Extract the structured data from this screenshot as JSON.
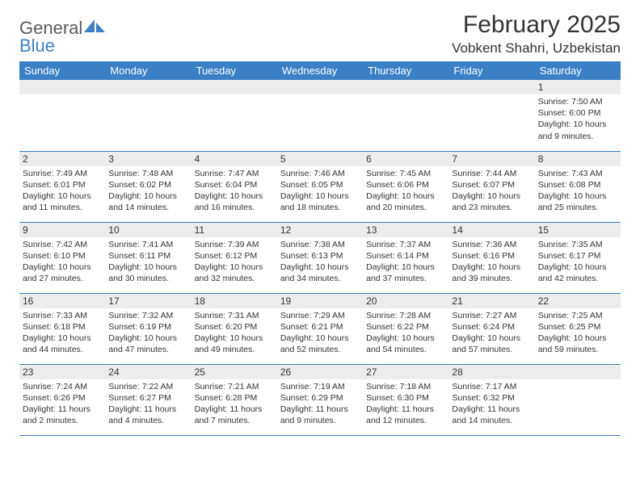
{
  "brand": {
    "word1": "General",
    "word2": "Blue"
  },
  "header": {
    "title": "February 2025",
    "location": "Vobkent Shahri, Uzbekistan"
  },
  "colors": {
    "accent": "#3b7fc4",
    "row_alt": "#ececec",
    "text": "#333333",
    "bg": "#ffffff"
  },
  "weekdays": [
    "Sunday",
    "Monday",
    "Tuesday",
    "Wednesday",
    "Thursday",
    "Friday",
    "Saturday"
  ],
  "grid": {
    "first_weekday_index": 6,
    "days": [
      {
        "n": 1,
        "sunrise": "7:50 AM",
        "sunset": "6:00 PM",
        "daylight": "10 hours and 9 minutes."
      },
      {
        "n": 2,
        "sunrise": "7:49 AM",
        "sunset": "6:01 PM",
        "daylight": "10 hours and 11 minutes."
      },
      {
        "n": 3,
        "sunrise": "7:48 AM",
        "sunset": "6:02 PM",
        "daylight": "10 hours and 14 minutes."
      },
      {
        "n": 4,
        "sunrise": "7:47 AM",
        "sunset": "6:04 PM",
        "daylight": "10 hours and 16 minutes."
      },
      {
        "n": 5,
        "sunrise": "7:46 AM",
        "sunset": "6:05 PM",
        "daylight": "10 hours and 18 minutes."
      },
      {
        "n": 6,
        "sunrise": "7:45 AM",
        "sunset": "6:06 PM",
        "daylight": "10 hours and 20 minutes."
      },
      {
        "n": 7,
        "sunrise": "7:44 AM",
        "sunset": "6:07 PM",
        "daylight": "10 hours and 23 minutes."
      },
      {
        "n": 8,
        "sunrise": "7:43 AM",
        "sunset": "6:08 PM",
        "daylight": "10 hours and 25 minutes."
      },
      {
        "n": 9,
        "sunrise": "7:42 AM",
        "sunset": "6:10 PM",
        "daylight": "10 hours and 27 minutes."
      },
      {
        "n": 10,
        "sunrise": "7:41 AM",
        "sunset": "6:11 PM",
        "daylight": "10 hours and 30 minutes."
      },
      {
        "n": 11,
        "sunrise": "7:39 AM",
        "sunset": "6:12 PM",
        "daylight": "10 hours and 32 minutes."
      },
      {
        "n": 12,
        "sunrise": "7:38 AM",
        "sunset": "6:13 PM",
        "daylight": "10 hours and 34 minutes."
      },
      {
        "n": 13,
        "sunrise": "7:37 AM",
        "sunset": "6:14 PM",
        "daylight": "10 hours and 37 minutes."
      },
      {
        "n": 14,
        "sunrise": "7:36 AM",
        "sunset": "6:16 PM",
        "daylight": "10 hours and 39 minutes."
      },
      {
        "n": 15,
        "sunrise": "7:35 AM",
        "sunset": "6:17 PM",
        "daylight": "10 hours and 42 minutes."
      },
      {
        "n": 16,
        "sunrise": "7:33 AM",
        "sunset": "6:18 PM",
        "daylight": "10 hours and 44 minutes."
      },
      {
        "n": 17,
        "sunrise": "7:32 AM",
        "sunset": "6:19 PM",
        "daylight": "10 hours and 47 minutes."
      },
      {
        "n": 18,
        "sunrise": "7:31 AM",
        "sunset": "6:20 PM",
        "daylight": "10 hours and 49 minutes."
      },
      {
        "n": 19,
        "sunrise": "7:29 AM",
        "sunset": "6:21 PM",
        "daylight": "10 hours and 52 minutes."
      },
      {
        "n": 20,
        "sunrise": "7:28 AM",
        "sunset": "6:22 PM",
        "daylight": "10 hours and 54 minutes."
      },
      {
        "n": 21,
        "sunrise": "7:27 AM",
        "sunset": "6:24 PM",
        "daylight": "10 hours and 57 minutes."
      },
      {
        "n": 22,
        "sunrise": "7:25 AM",
        "sunset": "6:25 PM",
        "daylight": "10 hours and 59 minutes."
      },
      {
        "n": 23,
        "sunrise": "7:24 AM",
        "sunset": "6:26 PM",
        "daylight": "11 hours and 2 minutes."
      },
      {
        "n": 24,
        "sunrise": "7:22 AM",
        "sunset": "6:27 PM",
        "daylight": "11 hours and 4 minutes."
      },
      {
        "n": 25,
        "sunrise": "7:21 AM",
        "sunset": "6:28 PM",
        "daylight": "11 hours and 7 minutes."
      },
      {
        "n": 26,
        "sunrise": "7:19 AM",
        "sunset": "6:29 PM",
        "daylight": "11 hours and 9 minutes."
      },
      {
        "n": 27,
        "sunrise": "7:18 AM",
        "sunset": "6:30 PM",
        "daylight": "11 hours and 12 minutes."
      },
      {
        "n": 28,
        "sunrise": "7:17 AM",
        "sunset": "6:32 PM",
        "daylight": "11 hours and 14 minutes."
      }
    ]
  },
  "labels": {
    "sunrise": "Sunrise:",
    "sunset": "Sunset:",
    "daylight": "Daylight:"
  }
}
